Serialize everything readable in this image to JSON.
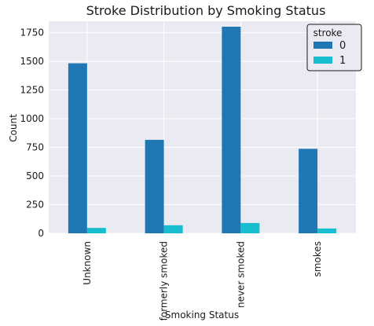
{
  "chart_data": {
    "type": "bar",
    "title": "Stroke Distribution by Smoking Status",
    "xlabel": "Smoking Status",
    "ylabel": "Count",
    "categories": [
      "Unknown",
      "formerly smoked",
      "never smoked",
      "smokes"
    ],
    "series": [
      {
        "name": "0",
        "values": [
          1483,
          815,
          1802,
          737
        ],
        "color": "#1f77b4"
      },
      {
        "name": "1",
        "values": [
          47,
          70,
          90,
          42
        ],
        "color": "#17becf"
      }
    ],
    "ylim": [
      0,
      1850
    ],
    "yticks": [
      0,
      250,
      500,
      750,
      1000,
      1250,
      1500,
      1750
    ],
    "legend": {
      "title": "stroke",
      "placement": "top-right"
    },
    "grid": true,
    "background": "#eaeaf2"
  }
}
